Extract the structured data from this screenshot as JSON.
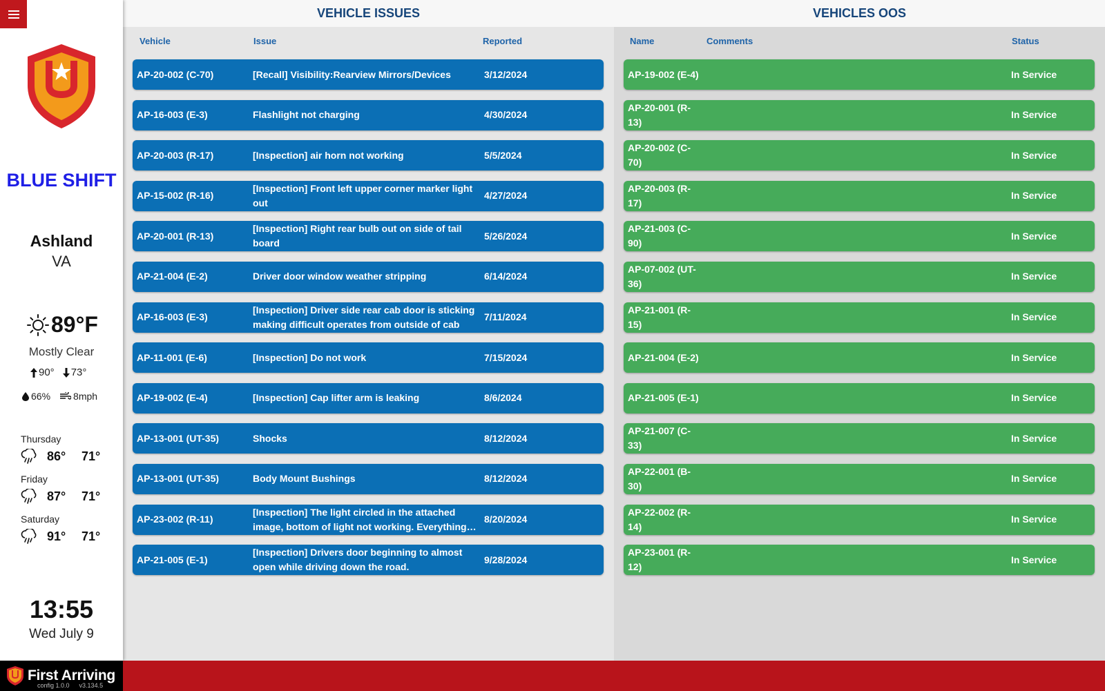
{
  "sidebar": {
    "shift": "BLUE SHIFT",
    "city": "Ashland",
    "state": "VA",
    "weather": {
      "temp": "89°F",
      "condition": "Mostly Clear",
      "high": "90°",
      "low": "73°",
      "humidity": "66%",
      "wind": "8mph"
    },
    "forecast": [
      {
        "day": "Thursday",
        "high": "86°",
        "low": "71°"
      },
      {
        "day": "Friday",
        "high": "87°",
        "low": "71°"
      },
      {
        "day": "Saturday",
        "high": "91°",
        "low": "71°"
      }
    ],
    "time": "13:55",
    "date": "Wed July 9"
  },
  "footer": {
    "brand": "First Arriving",
    "config": "config 1.0.0",
    "version": "v3.134.5"
  },
  "issues": {
    "title": "VEHICLE ISSUES",
    "columns": {
      "vehicle": "Vehicle",
      "issue": "Issue",
      "reported": "Reported"
    },
    "rows": [
      {
        "vehicle": "AP-20-002 (C-70)",
        "issue": "[Recall] Visibility:Rearview Mirrors/Devices",
        "reported": "3/12/2024"
      },
      {
        "vehicle": "AP-16-003 (E-3)",
        "issue": "Flashlight not charging",
        "reported": "4/30/2024"
      },
      {
        "vehicle": "AP-20-003 (R-17)",
        "issue": "[Inspection] air horn not working",
        "reported": "5/5/2024"
      },
      {
        "vehicle": "AP-15-002 (R-16)",
        "issue": "[Inspection] Front left upper corner marker light out",
        "reported": "4/27/2024"
      },
      {
        "vehicle": "AP-20-001 (R-13)",
        "issue": "[Inspection] Right rear bulb out on side of tail board",
        "reported": "5/26/2024"
      },
      {
        "vehicle": "AP-21-004 (E-2)",
        "issue": "Driver door window weather stripping",
        "reported": "6/14/2024"
      },
      {
        "vehicle": "AP-16-003 (E-3)",
        "issue": "[Inspection] Driver side rear cab door is sticking making difficult operates from outside of cab",
        "reported": "7/11/2024"
      },
      {
        "vehicle": "AP-11-001 (E-6)",
        "issue": "[Inspection] Do not work",
        "reported": "7/15/2024"
      },
      {
        "vehicle": "AP-19-002 (E-4)",
        "issue": "[Inspection] Cap lifter arm is leaking",
        "reported": "8/6/2024"
      },
      {
        "vehicle": "AP-13-001 (UT-35)",
        "issue": "Shocks",
        "reported": "8/12/2024"
      },
      {
        "vehicle": "AP-13-001 (UT-35)",
        "issue": "Body Mount Bushings",
        "reported": "8/12/2024"
      },
      {
        "vehicle": "AP-23-002 (R-11)",
        "issue": "[Inspection] The light circled in the attached image, bottom of light not working. Everything else checked out okay.",
        "reported": "8/20/2024"
      },
      {
        "vehicle": "AP-21-005 (E-1)",
        "issue": "[Inspection] Drivers door beginning to almost open while driving down the road.",
        "reported": "9/28/2024"
      }
    ]
  },
  "oos": {
    "title": "VEHICLES OOS",
    "columns": {
      "name": "Name",
      "comments": "Comments",
      "status": "Status"
    },
    "rows": [
      {
        "name": "AP-19-002 (E-4)",
        "status": "In Service"
      },
      {
        "name": "AP-20-001 (R-13)",
        "status": "In Service"
      },
      {
        "name": "AP-20-002 (C-70)",
        "status": "In Service"
      },
      {
        "name": "AP-20-003 (R-17)",
        "status": "In Service"
      },
      {
        "name": "AP-21-003 (C-90)",
        "status": "In Service"
      },
      {
        "name": "AP-07-002 (UT-36)",
        "status": "In Service"
      },
      {
        "name": "AP-21-001 (R-15)",
        "status": "In Service"
      },
      {
        "name": "AP-21-004 (E-2)",
        "status": "In Service"
      },
      {
        "name": "AP-21-005 (E-1)",
        "status": "In Service"
      },
      {
        "name": "AP-21-007 (C-33)",
        "status": "In Service"
      },
      {
        "name": "AP-22-001 (B-30)",
        "status": "In Service"
      },
      {
        "name": "AP-22-002 (R-14)",
        "status": "In Service"
      },
      {
        "name": "AP-23-001 (R-12)",
        "status": "In Service"
      }
    ]
  }
}
